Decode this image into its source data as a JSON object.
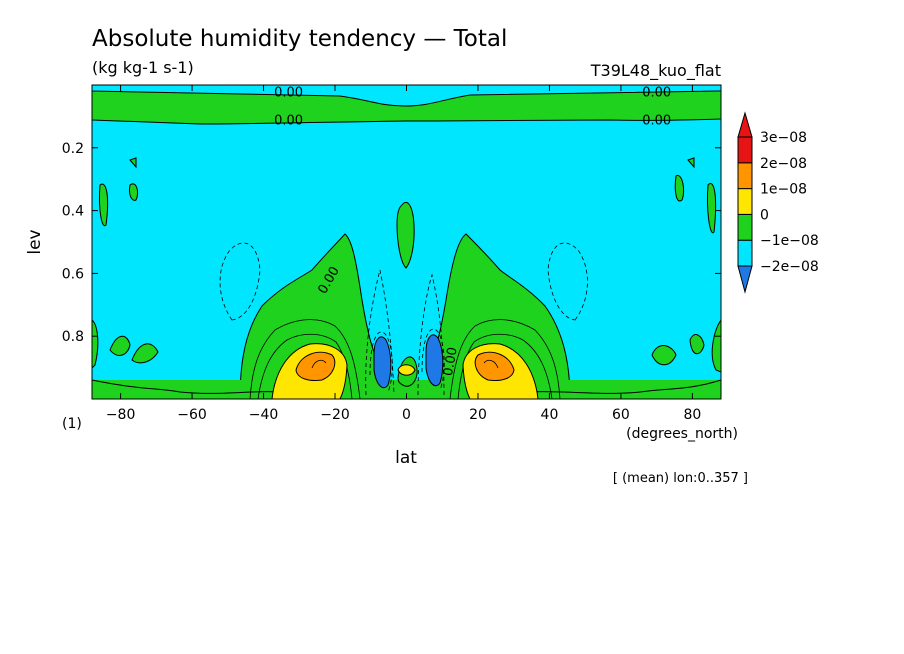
{
  "chart_data": {
    "type": "heatmap",
    "title": "Absolute humidity tendency — Total",
    "units": "(kg kg-1 s-1)",
    "run_label": "T39L48_kuo_flat",
    "xlabel": "lat",
    "x_units": "(degrees_north)",
    "ylabel": "lev",
    "y_units": "(1)",
    "xlim": [
      -88,
      88
    ],
    "ylim": [
      1.0,
      0.0
    ],
    "x_ticks": [
      -80,
      -60,
      -40,
      -20,
      0,
      20,
      40,
      60,
      80
    ],
    "y_ticks": [
      0.2,
      0.4,
      0.6,
      0.8
    ],
    "x_tick_labels": [
      "−80",
      "−60",
      "−40",
      "−20",
      "0",
      "20",
      "40",
      "60",
      "80"
    ],
    "y_tick_labels": [
      "0.2",
      "0.4",
      "0.6",
      "0.8"
    ],
    "contour_labels": [
      {
        "text": "0.00",
        "lat": -33,
        "lev": 0.02
      },
      {
        "text": "0.00",
        "lat": 70,
        "lev": 0.02
      },
      {
        "text": "0.00",
        "lat": -33,
        "lev": 0.11
      },
      {
        "text": "0.00",
        "lat": 70,
        "lev": 0.11
      },
      {
        "text": "0.00",
        "lat": -22,
        "lev": 0.62
      },
      {
        "text": "0.00",
        "lat": 12,
        "lev": 0.88
      }
    ],
    "colorbar": {
      "levels": [
        -2e-08,
        -1e-08,
        0,
        1e-08,
        2e-08,
        3e-08
      ],
      "labels": [
        "−2e−08",
        "−1e−08",
        "0",
        "1e−08",
        "2e−08",
        "3e−08"
      ],
      "colors": [
        "#1e78e6",
        "#00e6ff",
        "#1ed21e",
        "#ffe600",
        "#ff9600",
        "#e61414"
      ]
    },
    "annotation": "[ (mean) lon:0..357 ]"
  }
}
